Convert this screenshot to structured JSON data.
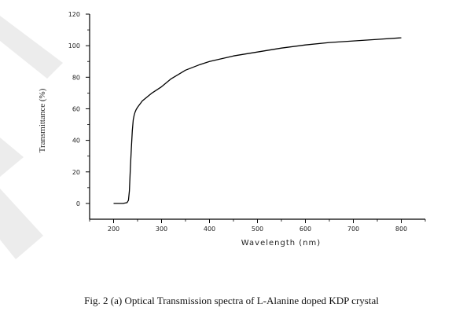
{
  "caption": "Fig. 2 (a) Optical Transmission spectra of L-Alanine doped KDP crystal",
  "colors": {
    "line": "#000000",
    "axis": "#000000",
    "watermark": "#e8e8e8"
  },
  "chart_data": {
    "type": "line",
    "title": "",
    "xlabel": "Wavelength (nm)",
    "ylabel": "Transmittance (%)",
    "xlim": [
      150,
      850
    ],
    "ylim": [
      -10,
      120
    ],
    "x_ticks": [
      200,
      300,
      400,
      500,
      600,
      700,
      800
    ],
    "y_ticks": [
      0,
      20,
      40,
      60,
      80,
      100,
      120
    ],
    "grid": false,
    "legend": "none",
    "series": [
      {
        "x": [
          200,
          220,
          228,
          231,
          233,
          235,
          237,
          239,
          241,
          243,
          245,
          247,
          250,
          255,
          260,
          270,
          280,
          300,
          320,
          350,
          380,
          400,
          450,
          500,
          550,
          600,
          650,
          700,
          750,
          800
        ],
        "y": [
          0,
          0,
          0.5,
          2,
          8,
          22,
          35,
          46,
          53,
          56,
          58,
          59.5,
          61,
          63,
          65,
          67.5,
          70,
          74,
          79,
          84.5,
          88,
          90,
          93.5,
          96,
          98.5,
          100.5,
          102,
          103,
          104,
          105
        ]
      }
    ]
  }
}
